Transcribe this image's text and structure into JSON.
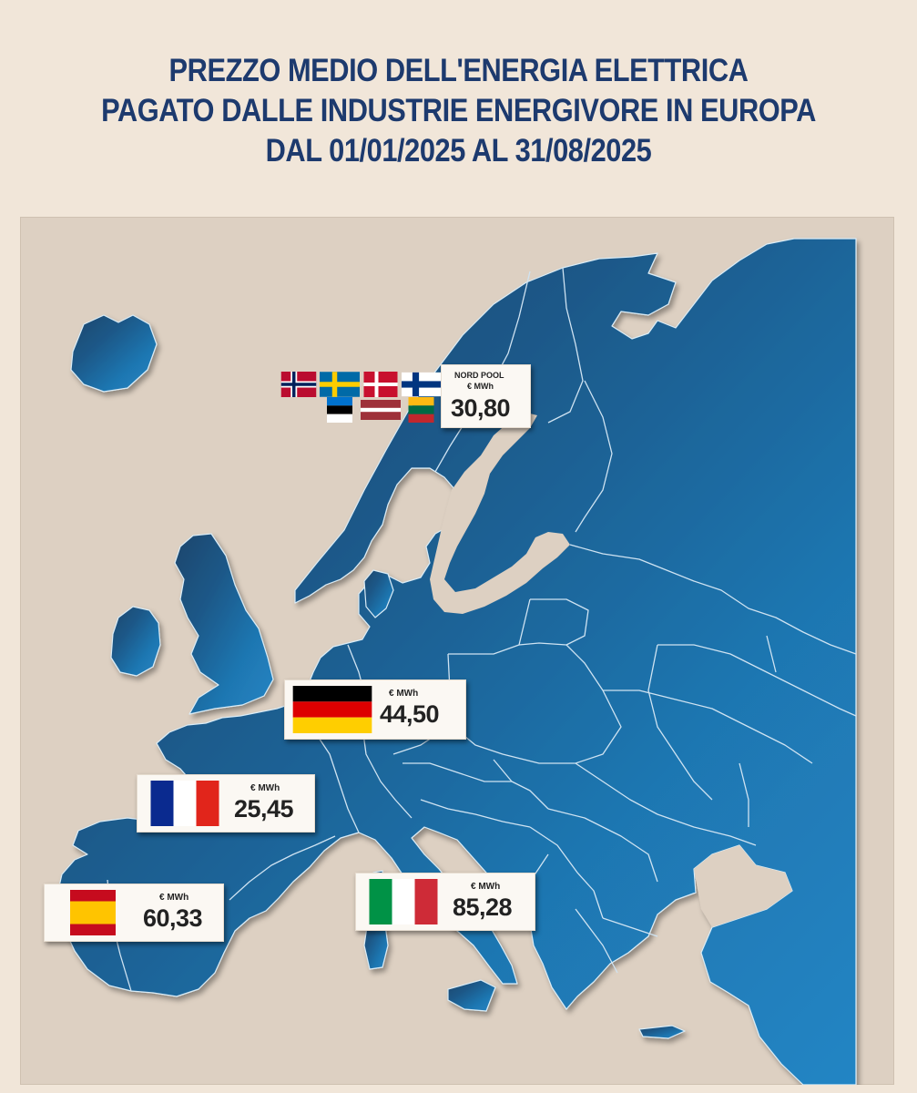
{
  "title": {
    "line1": "PREZZO MEDIO DELL'ENERGIA ELETTRICA",
    "line2": "PAGATO DALLE INDUSTRIE ENERGIVORE IN EUROPA",
    "line3": "DAL 01/01/2025 AL 31/08/2025"
  },
  "colors": {
    "background": "#f1e6d9",
    "title": "#1d3a6e",
    "sea": "#ddd0c2",
    "land_dark": "#1c4c74",
    "land_light": "#1f7cb8",
    "borders": "#cfe3f2"
  },
  "markers": {
    "nordpool": {
      "flags": [
        "norway-flag",
        "sweden-flag",
        "denmark-flag",
        "finland-flag",
        "estonia-flag",
        "latvia-flag",
        "lithuania-flag"
      ],
      "label": "NORD POOL",
      "unit": "€ MWh",
      "value": "30,80"
    },
    "germany": {
      "flag": "germany-flag",
      "unit": "€ MWh",
      "value": "44,50"
    },
    "france": {
      "flag": "france-flag",
      "unit": "€ MWh",
      "value": "25,45"
    },
    "spain": {
      "flag": "spain-flag",
      "unit": "€ MWh",
      "value": "60,33"
    },
    "italy": {
      "flag": "italy-flag",
      "unit": "€ MWh",
      "value": "85,28"
    }
  }
}
